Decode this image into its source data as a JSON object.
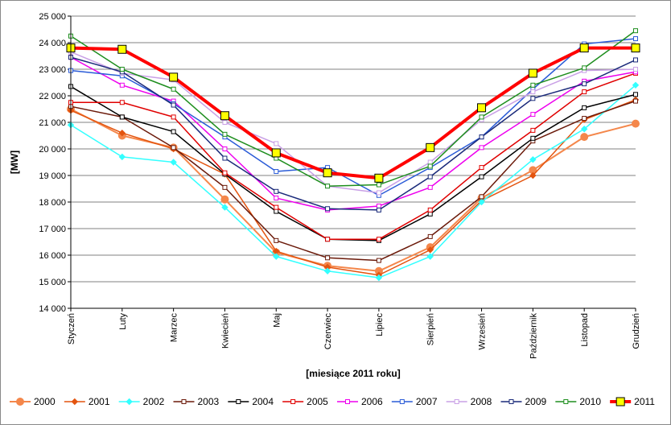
{
  "chart_data": {
    "type": "line",
    "title": "",
    "xlabel": "[miesiące 2011  roku]",
    "ylabel": "[MW]",
    "ylim": [
      14000,
      25000
    ],
    "yticks": [
      14000,
      15000,
      16000,
      17000,
      18000,
      19000,
      20000,
      21000,
      22000,
      23000,
      24000,
      25000
    ],
    "ytick_labels": [
      "14 000",
      "15 000",
      "16 000",
      "17 000",
      "18 000",
      "19 000",
      "20 000",
      "21 000",
      "22 000",
      "23 000",
      "24 000",
      "25 000"
    ],
    "grid": "horizontal",
    "legend_position": "bottom",
    "categories": [
      "Styczeń",
      "Luty",
      "Marzec",
      "Kwiecień",
      "Maj",
      "Czerwiec",
      "Lipiec",
      "Sierpień",
      "Wrzesień",
      "Październik",
      "Listopad",
      "Grudzień"
    ],
    "series": [
      {
        "name": "2000",
        "color": "#f4874b",
        "marker": "circle",
        "width": 2,
        "values": [
          21500,
          20500,
          20050,
          18100,
          16100,
          15600,
          15400,
          16300,
          18150,
          19200,
          20450,
          20950
        ]
      },
      {
        "name": "2001",
        "color": "#e3540f",
        "marker": "diamond",
        "width": 1.5,
        "values": [
          21450,
          20600,
          20000,
          19050,
          16150,
          15550,
          15250,
          16200,
          18050,
          19000,
          21100,
          21850
        ]
      },
      {
        "name": "2002",
        "color": "#33ffff",
        "marker": "diamond",
        "width": 1.5,
        "values": [
          20900,
          19700,
          19500,
          17800,
          15950,
          15400,
          15150,
          15950,
          18000,
          19600,
          20750,
          22400
        ]
      },
      {
        "name": "2003",
        "color": "#6b1a0a",
        "marker": "square",
        "width": 1.5,
        "values": [
          21600,
          21200,
          20050,
          18550,
          16550,
          15900,
          15800,
          16700,
          18200,
          20300,
          21150,
          21800
        ]
      },
      {
        "name": "2004",
        "color": "#000000",
        "marker": "square",
        "width": 1.5,
        "values": [
          22350,
          21200,
          20650,
          19050,
          17650,
          16600,
          16550,
          17550,
          18950,
          20400,
          21550,
          22050
        ]
      },
      {
        "name": "2005",
        "color": "#e00000",
        "marker": "square",
        "width": 1.5,
        "values": [
          21750,
          21750,
          21200,
          19100,
          17800,
          16600,
          16600,
          17700,
          19300,
          20700,
          22150,
          22850
        ]
      },
      {
        "name": "2006",
        "color": "#ee00ee",
        "marker": "square",
        "width": 1.5,
        "values": [
          23450,
          22400,
          21800,
          20000,
          18150,
          17700,
          17850,
          18550,
          20050,
          21300,
          22550,
          22900
        ]
      },
      {
        "name": "2007",
        "color": "#2a5bd7",
        "marker": "square",
        "width": 1.5,
        "values": [
          22950,
          22750,
          21700,
          20450,
          19150,
          19300,
          18250,
          19300,
          20450,
          22250,
          23950,
          24150
        ]
      },
      {
        "name": "2008",
        "color": "#c9a0e6",
        "marker": "square",
        "width": 1.5,
        "values": [
          23650,
          22850,
          22600,
          21000,
          20200,
          18600,
          18350,
          19500,
          21100,
          22150,
          22950,
          23000
        ]
      },
      {
        "name": "2009",
        "color": "#1a2a7a",
        "marker": "square",
        "width": 1.5,
        "values": [
          23450,
          22900,
          21650,
          19650,
          18400,
          17750,
          17700,
          18950,
          20450,
          21900,
          22450,
          23350
        ]
      },
      {
        "name": "2010",
        "color": "#1e8e1e",
        "marker": "square",
        "width": 1.5,
        "values": [
          24250,
          23000,
          22250,
          20550,
          19650,
          18600,
          18650,
          19350,
          21200,
          22400,
          23050,
          24450
        ]
      },
      {
        "name": "2011",
        "color": "#ff0000",
        "marker": "yellow-square",
        "width": 4,
        "values": [
          23800,
          23750,
          22700,
          21250,
          19850,
          19100,
          18900,
          20050,
          21550,
          22850,
          23800,
          23800
        ]
      }
    ]
  }
}
